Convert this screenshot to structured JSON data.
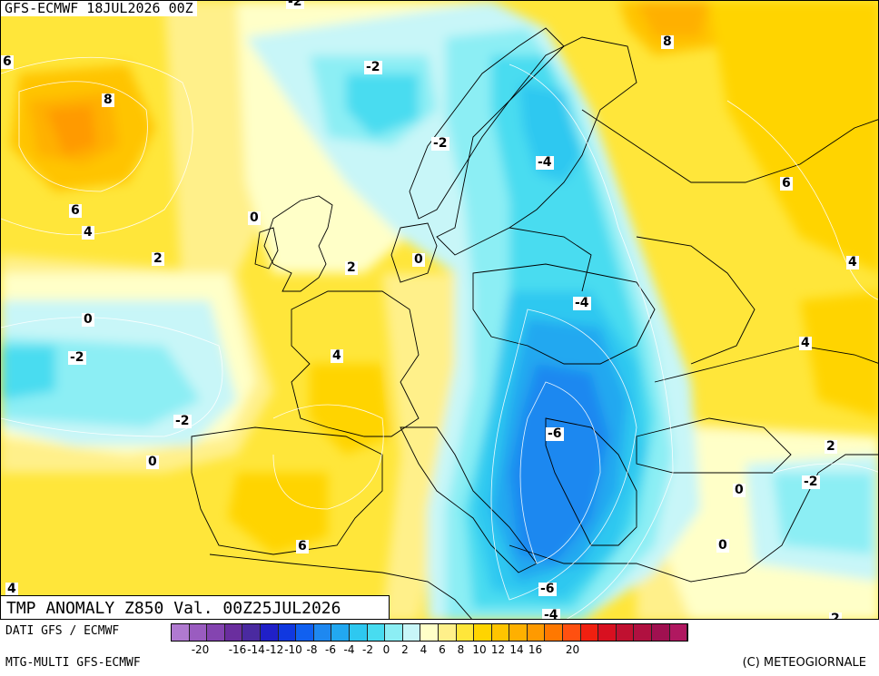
{
  "header": {
    "run_title": "GFS-ECMWF 18JUL2026 00Z",
    "map_title": "TMP ANOMALY Z850 Val. 00Z25JUL2026"
  },
  "footer": {
    "data_credit": "DATI GFS / ECMWF",
    "model_credit": "MTG-MULTI GFS-ECMWF",
    "copyright": "(C) METEOGIORNALE"
  },
  "legend": {
    "colors": [
      "#b07ad0",
      "#9a5cc0",
      "#8444b0",
      "#6a2e9e",
      "#4a2aa0",
      "#2020c8",
      "#1038e0",
      "#1060f0",
      "#1e88f0",
      "#22a8f0",
      "#2ec8f0",
      "#48dcf0",
      "#8ceef4",
      "#c8f6f8",
      "#ffffc8",
      "#fff08a",
      "#ffe63a",
      "#ffd400",
      "#ffc400",
      "#ffb000",
      "#ff9a00",
      "#ff7800",
      "#ff5010",
      "#f02010",
      "#d81020",
      "#c01030",
      "#b01040",
      "#a01050",
      "#b01860"
    ],
    "ticks": [
      "-20",
      "-16",
      "-14",
      "-12",
      "-10",
      "-8",
      "-6",
      "-4",
      "-2",
      "0",
      "2",
      "4",
      "6",
      "8",
      "10",
      "12",
      "14",
      "16",
      "20"
    ]
  },
  "contour_labels": [
    {
      "text": "-2"
    },
    {
      "text": "6"
    },
    {
      "text": "8"
    },
    {
      "text": "-2"
    },
    {
      "text": "8"
    },
    {
      "text": "-2"
    },
    {
      "text": "-4"
    },
    {
      "text": "6"
    },
    {
      "text": "0"
    },
    {
      "text": "6"
    },
    {
      "text": "4"
    },
    {
      "text": "2"
    },
    {
      "text": "2"
    },
    {
      "text": "0"
    },
    {
      "text": "4"
    },
    {
      "text": "0"
    },
    {
      "text": "-4"
    },
    {
      "text": "-2"
    },
    {
      "text": "4"
    },
    {
      "text": "4"
    },
    {
      "text": "-2"
    },
    {
      "text": "-6"
    },
    {
      "text": "2"
    },
    {
      "text": "0"
    },
    {
      "text": "-2"
    },
    {
      "text": "0"
    },
    {
      "text": "6"
    },
    {
      "text": "0"
    },
    {
      "text": "-6"
    },
    {
      "text": "4"
    },
    {
      "text": "-4"
    },
    {
      "text": "2"
    }
  ]
}
